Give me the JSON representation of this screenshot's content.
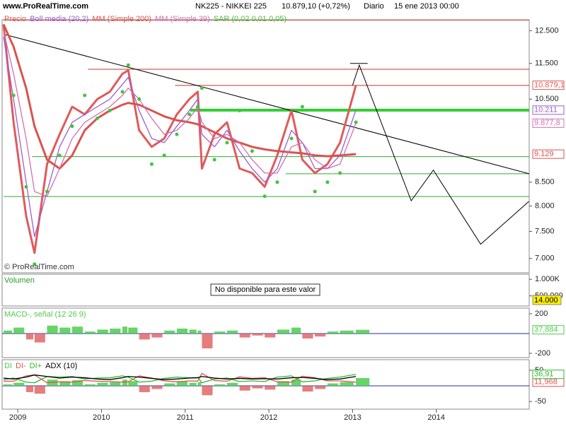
{
  "chart_data": [
    {
      "type": "line",
      "source": "www.ProRealTime.com",
      "symbol": "NK225 - NIKKEI 225",
      "last": "10.879,10 (+0,72%)",
      "period": "Diario",
      "date": "15 ene 2013 00:00",
      "watermark": "© ProRealTime.com",
      "log": true,
      "xlim": [
        2008.83,
        2015.11
      ],
      "xticks": [
        2009,
        2010,
        2011,
        2012,
        2013,
        2014
      ],
      "ylim": [
        6750,
        12850
      ],
      "yticks": [
        {
          "value": 12500,
          "label": "12.500"
        },
        {
          "value": 11500,
          "label": "11.500"
        },
        {
          "value": 10500,
          "label": "10.500"
        },
        {
          "value": 8500,
          "label": "8.500"
        },
        {
          "value": 8000,
          "label": "8.000"
        },
        {
          "value": 7500,
          "label": "7.500"
        },
        {
          "value": 7000,
          "label": "7.000"
        }
      ],
      "x": [
        2008.83,
        2008.95,
        2009.1,
        2009.2,
        2009.35,
        2009.5,
        2009.65,
        2009.8,
        2009.95,
        2010.1,
        2010.25,
        2010.32,
        2010.45,
        2010.6,
        2010.75,
        2010.9,
        2011.05,
        2011.15,
        2011.2,
        2011.35,
        2011.5,
        2011.65,
        2011.8,
        2011.95,
        2012.1,
        2012.27,
        2012.4,
        2012.55,
        2012.7,
        2012.85,
        2013.04
      ],
      "series": [
        {
          "name": "Precio",
          "color": "#e05a5a",
          "values": [
            12700,
            9900,
            7800,
            7100,
            8900,
            9600,
            10300,
            10100,
            10500,
            10700,
            11200,
            11300,
            9700,
            9300,
            9500,
            10100,
            10500,
            10700,
            8800,
            9600,
            9900,
            8800,
            8700,
            8400,
            9100,
            10200,
            9000,
            8700,
            8900,
            9400,
            10879.1
          ],
          "value_labels": [
            null,
            null,
            null,
            null,
            null,
            null,
            null,
            null,
            null,
            null,
            null,
            null,
            null,
            null,
            null,
            null,
            null,
            null,
            null,
            null,
            null,
            null,
            null,
            null,
            null,
            null,
            null,
            null,
            null,
            null,
            "10.879,1"
          ]
        },
        {
          "name": "Boll media (20,2)",
          "color": "#9a5fd0",
          "values": [
            12300,
            10500,
            8500,
            7400,
            8300,
            9300,
            9900,
            10100,
            10300,
            10500,
            10900,
            11100,
            10200,
            9500,
            9400,
            9800,
            10200,
            10500,
            9600,
            9300,
            9700,
            9200,
            8800,
            8500,
            8800,
            9700,
            9400,
            8800,
            8800,
            9100,
            10211
          ],
          "value_labels": [
            null,
            null,
            null,
            null,
            null,
            null,
            null,
            null,
            null,
            null,
            null,
            null,
            null,
            null,
            null,
            null,
            null,
            null,
            null,
            null,
            null,
            null,
            null,
            null,
            null,
            null,
            null,
            null,
            null,
            null,
            "10.211"
          ]
        },
        {
          "name": "MM (Simple 200)",
          "color": "#d9534f",
          "values": [
            12700,
            12000,
            10800,
            9800,
            9000,
            8800,
            9100,
            9700,
            10000,
            10200,
            10350,
            10400,
            10350,
            10200,
            10050,
            9950,
            9900,
            9850,
            9800,
            9650,
            9500,
            9400,
            9300,
            9240,
            9200,
            9170,
            9150,
            9100,
            9080,
            9100,
            9129
          ],
          "value_labels": [
            null,
            null,
            null,
            null,
            null,
            null,
            null,
            null,
            null,
            null,
            null,
            null,
            null,
            null,
            null,
            null,
            null,
            null,
            null,
            null,
            null,
            null,
            null,
            null,
            null,
            null,
            null,
            null,
            null,
            null,
            "9.129"
          ]
        },
        {
          "name": "MM (Simple 39)",
          "color": "#d070b0",
          "values": [
            12500,
            11200,
            9500,
            8300,
            8200,
            8800,
            9500,
            9900,
            10100,
            10300,
            10600,
            10800,
            10500,
            10000,
            9600,
            9700,
            10000,
            10300,
            9900,
            9500,
            9600,
            9400,
            9000,
            8700,
            8700,
            9300,
            9400,
            9000,
            8800,
            8900,
            9877.8
          ],
          "value_labels": [
            null,
            null,
            null,
            null,
            null,
            null,
            null,
            null,
            null,
            null,
            null,
            null,
            null,
            null,
            null,
            null,
            null,
            null,
            null,
            null,
            null,
            null,
            null,
            null,
            null,
            null,
            null,
            null,
            null,
            null,
            "9.877,8"
          ]
        },
        {
          "name": "SAR (0,02 0,01 0,05)",
          "type": "scatter",
          "color": "#3fc43f",
          "values": [
            12900,
            10600,
            8400,
            6900,
            8300,
            9100,
            9800,
            10600,
            10000,
            10200,
            10700,
            11450,
            10500,
            8900,
            9100,
            9600,
            10100,
            10300,
            10800,
            9000,
            9400,
            10200,
            9200,
            8200,
            8500,
            9500,
            10300,
            8300,
            8500,
            8700,
            9900
          ]
        }
      ],
      "levels": [
        {
          "value": 12840,
          "color": "#c0392b",
          "x0": 2008.83
        },
        {
          "value": 11330,
          "color": "#c0392b",
          "x0": 2009.84
        },
        {
          "value": 10873,
          "color": "#c0392b",
          "x0": 2010.88
        },
        {
          "value": 10211,
          "color": "#33cc33",
          "x0": 2011.06,
          "thick": true
        },
        {
          "value": 9071,
          "color": "#33aa33",
          "x0": 2009.17
        },
        {
          "value": 8685,
          "color": "#33aa33",
          "x0": 2012.2
        },
        {
          "value": 8196,
          "color": "#33aa33",
          "x0": 2008.83
        },
        {
          "value": 11500,
          "color": "#000000",
          "x0": 2012.97,
          "x1": 2013.18
        }
      ],
      "lines": [
        {
          "color": "#000000",
          "x": [
            2008.83,
            2015.11
          ],
          "values": [
            12388,
            8685
          ]
        },
        {
          "color": "#000000",
          "x": [
            2013.0,
            2013.08,
            2013.7,
            2013.965,
            2014.53,
            2015.105
          ],
          "values": [
            10879,
            11450,
            8107,
            8765,
            7259,
            8093
          ]
        }
      ]
    },
    {
      "type": "bar",
      "title": "Volumen",
      "note": "No disponible para este valor",
      "last_label": "14.000",
      "ylim": [
        195650,
        1152170
      ],
      "yticks": [
        {
          "value": 1000000,
          "label": "1.000K"
        },
        {
          "value": 500000,
          "label": "500.000"
        }
      ]
    },
    {
      "type": "bar",
      "ylim": [
        -243,
        257
      ],
      "yticks": [
        200,
        -200
      ],
      "baseline_color": "#1f2fa0",
      "x": [
        2008.83,
        2008.95,
        2009.1,
        2009.2,
        2009.35,
        2009.5,
        2009.65,
        2009.8,
        2009.95,
        2010.1,
        2010.25,
        2010.32,
        2010.45,
        2010.6,
        2010.75,
        2010.9,
        2011.05,
        2011.15,
        2011.2,
        2011.35,
        2011.5,
        2011.65,
        2011.8,
        2011.95,
        2012.1,
        2012.27,
        2012.4,
        2012.55,
        2012.7,
        2012.85,
        2013.04
      ],
      "series": [
        {
          "name": "MACD-, señal (12 26 9)",
          "color": "#4ccc4c",
          "negative_color": "#e06666",
          "values": [
            30,
            60,
            -60,
            -90,
            80,
            60,
            70,
            20,
            40,
            50,
            70,
            60,
            -60,
            -40,
            30,
            50,
            40,
            30,
            -150,
            20,
            30,
            -40,
            -20,
            -40,
            40,
            60,
            -50,
            -30,
            20,
            30,
            37.884
          ],
          "value_labels": [
            null,
            null,
            null,
            null,
            null,
            null,
            null,
            null,
            null,
            null,
            null,
            null,
            null,
            null,
            null,
            null,
            null,
            null,
            null,
            null,
            null,
            null,
            null,
            null,
            null,
            null,
            null,
            null,
            null,
            null,
            "37,884"
          ]
        }
      ]
    },
    {
      "type": "line",
      "ylim": [
        -74.4,
        83.7
      ],
      "yticks": [
        50,
        -50
      ],
      "baseline_color": "#1f2fa0",
      "x": [
        2008.83,
        2008.95,
        2009.1,
        2009.2,
        2009.35,
        2009.5,
        2009.65,
        2009.8,
        2009.95,
        2010.1,
        2010.25,
        2010.32,
        2010.45,
        2010.6,
        2010.75,
        2010.9,
        2011.05,
        2011.15,
        2011.2,
        2011.35,
        2011.5,
        2011.65,
        2011.8,
        2011.95,
        2012.1,
        2012.27,
        2012.4,
        2012.55,
        2012.7,
        2012.85,
        2013.04
      ],
      "series": [
        {
          "name": "DI",
          "type": "bar",
          "color": "#4ccc4c",
          "negative_color": "#e06666",
          "values": [
            5,
            10,
            -20,
            -25,
            20,
            15,
            18,
            5,
            10,
            12,
            20,
            15,
            -20,
            -10,
            8,
            15,
            10,
            12,
            -30,
            5,
            10,
            -15,
            -8,
            -12,
            15,
            20,
            -18,
            -10,
            8,
            12,
            24.942
          ]
        },
        {
          "name": "DI-",
          "color": "#e05050",
          "values": [
            15,
            15,
            32,
            35,
            10,
            13,
            12,
            17,
            15,
            14,
            12,
            13,
            32,
            25,
            16,
            13,
            16,
            15,
            40,
            17,
            15,
            29,
            24,
            26,
            13,
            12,
            31,
            26,
            16,
            16,
            11.968
          ],
          "value_labels": [
            null,
            null,
            null,
            null,
            null,
            null,
            null,
            null,
            null,
            null,
            null,
            null,
            null,
            null,
            null,
            null,
            null,
            null,
            null,
            null,
            null,
            null,
            null,
            null,
            null,
            null,
            null,
            null,
            null,
            null,
            "11,968"
          ]
        },
        {
          "name": "DI+",
          "color": "#2fb82f",
          "values": [
            20,
            25,
            12,
            10,
            30,
            28,
            30,
            22,
            25,
            26,
            32,
            28,
            12,
            15,
            24,
            28,
            26,
            27,
            10,
            22,
            25,
            14,
            16,
            14,
            28,
            32,
            13,
            16,
            24,
            28,
            36.91
          ],
          "value_labels": [
            null,
            null,
            null,
            null,
            null,
            null,
            null,
            null,
            null,
            null,
            null,
            null,
            null,
            null,
            null,
            null,
            null,
            null,
            null,
            null,
            null,
            null,
            null,
            null,
            null,
            null,
            null,
            null,
            null,
            null,
            "36,91"
          ]
        },
        {
          "name": "ADX (10)",
          "color": "#000000",
          "values": [
            25,
            22,
            28,
            35,
            30,
            25,
            28,
            26,
            22,
            20,
            26,
            30,
            28,
            24,
            20,
            22,
            25,
            26,
            30,
            25,
            22,
            24,
            22,
            23,
            22,
            26,
            27,
            24,
            20,
            22,
            30
          ]
        }
      ]
    }
  ]
}
